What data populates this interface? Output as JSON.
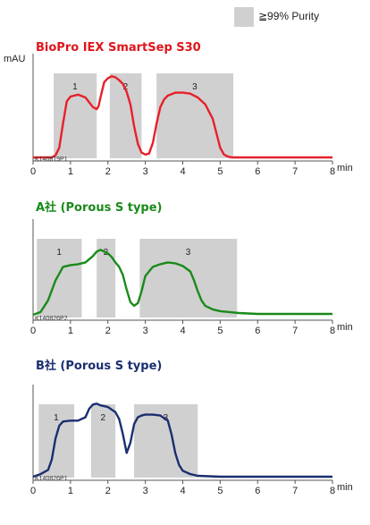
{
  "legend": {
    "swatch_color": "#d0d0d0",
    "label": "≧99% Purity"
  },
  "y_unit": "mAU",
  "x_unit": "min",
  "chart_data": [
    {
      "type": "line",
      "title": "BioPro IEX SmartSep S30",
      "title_color": "#e0151b",
      "line_color": "#e8202a",
      "sample_id": "K140819P1",
      "xlabel": "min",
      "ylabel": "mAU",
      "xlim": [
        0,
        8
      ],
      "ylim": [
        0,
        100
      ],
      "ticks": [
        "0",
        "1",
        "2",
        "3",
        "4",
        "5",
        "6",
        "7",
        "8"
      ],
      "fractions": [
        {
          "label": "1",
          "start": 0.55,
          "end": 1.7
        },
        {
          "label": "2",
          "start": 2.05,
          "end": 2.9
        },
        {
          "label": "3",
          "start": 3.3,
          "end": 5.35
        }
      ],
      "x": [
        0.0,
        0.5,
        0.6,
        0.7,
        0.8,
        0.9,
        1.0,
        1.2,
        1.4,
        1.5,
        1.6,
        1.7,
        1.75,
        1.8,
        1.9,
        2.0,
        2.1,
        2.2,
        2.3,
        2.4,
        2.5,
        2.6,
        2.7,
        2.8,
        2.9,
        3.0,
        3.1,
        3.2,
        3.3,
        3.4,
        3.5,
        3.6,
        3.8,
        4.0,
        4.2,
        4.4,
        4.6,
        4.8,
        4.9,
        5.0,
        5.1,
        5.2,
        5.3,
        5.4,
        6.0,
        7.0,
        8.0
      ],
      "y": [
        0,
        0,
        2,
        10,
        35,
        58,
        63,
        65,
        62,
        57,
        52,
        50,
        53,
        62,
        78,
        82,
        84,
        83,
        80,
        76,
        68,
        55,
        32,
        14,
        5,
        3,
        4,
        15,
        35,
        52,
        60,
        64,
        67,
        67,
        66,
        62,
        55,
        40,
        25,
        10,
        3,
        1,
        0,
        0,
        0,
        0,
        0
      ]
    },
    {
      "type": "line",
      "title": "A社 (Porous S type)",
      "title_color": "#1a8a1a",
      "line_color": "#1a8a1a",
      "sample_id": "K140826P2",
      "xlabel": "min",
      "ylabel": "",
      "xlim": [
        0,
        8
      ],
      "ylim": [
        0,
        100
      ],
      "ticks": [
        "0",
        "1",
        "2",
        "3",
        "4",
        "5",
        "6",
        "7",
        "8"
      ],
      "fractions": [
        {
          "label": "1",
          "start": 0.1,
          "end": 1.3
        },
        {
          "label": "2",
          "start": 1.7,
          "end": 2.2
        },
        {
          "label": "3",
          "start": 2.85,
          "end": 5.45
        }
      ],
      "x": [
        0.0,
        0.2,
        0.4,
        0.6,
        0.8,
        1.0,
        1.2,
        1.4,
        1.6,
        1.7,
        1.8,
        1.9,
        2.0,
        2.1,
        2.2,
        2.3,
        2.4,
        2.5,
        2.6,
        2.7,
        2.8,
        2.9,
        3.0,
        3.2,
        3.4,
        3.6,
        3.8,
        4.0,
        4.2,
        4.3,
        4.4,
        4.5,
        4.6,
        4.8,
        5.0,
        5.5,
        6.0,
        7.0,
        8.0
      ],
      "y": [
        2,
        5,
        18,
        40,
        55,
        57,
        58,
        60,
        67,
        72,
        74,
        72,
        70,
        66,
        60,
        55,
        46,
        30,
        16,
        12,
        15,
        28,
        45,
        55,
        58,
        60,
        59,
        56,
        50,
        40,
        28,
        18,
        12,
        8,
        6,
        4,
        3,
        3,
        3
      ]
    },
    {
      "type": "line",
      "title": "B社 (Porous S type)",
      "title_color": "#1a2e70",
      "line_color": "#1a2e70",
      "sample_id": "K140826P1",
      "xlabel": "min",
      "ylabel": "",
      "xlim": [
        0,
        8
      ],
      "ylim": [
        0,
        100
      ],
      "ticks": [
        "0",
        "1",
        "2",
        "3",
        "4",
        "5",
        "6",
        "7",
        "8"
      ],
      "fractions": [
        {
          "label": "1",
          "start": 0.15,
          "end": 1.1
        },
        {
          "label": "2",
          "start": 1.55,
          "end": 2.2
        },
        {
          "label": "3",
          "start": 2.7,
          "end": 4.4
        }
      ],
      "x": [
        0.0,
        0.2,
        0.4,
        0.5,
        0.6,
        0.7,
        0.8,
        1.0,
        1.2,
        1.4,
        1.5,
        1.6,
        1.7,
        1.8,
        2.0,
        2.2,
        2.3,
        2.4,
        2.5,
        2.6,
        2.7,
        2.8,
        2.9,
        3.0,
        3.2,
        3.4,
        3.6,
        3.7,
        3.8,
        3.9,
        4.0,
        4.2,
        4.4,
        5.0,
        6.0,
        7.0,
        8.0
      ],
      "y": [
        0,
        3,
        8,
        20,
        45,
        60,
        65,
        66,
        66,
        70,
        80,
        85,
        86,
        84,
        82,
        76,
        68,
        50,
        28,
        40,
        62,
        70,
        72,
        73,
        73,
        72,
        66,
        50,
        28,
        14,
        7,
        3,
        1,
        0,
        0,
        0,
        0
      ]
    }
  ]
}
